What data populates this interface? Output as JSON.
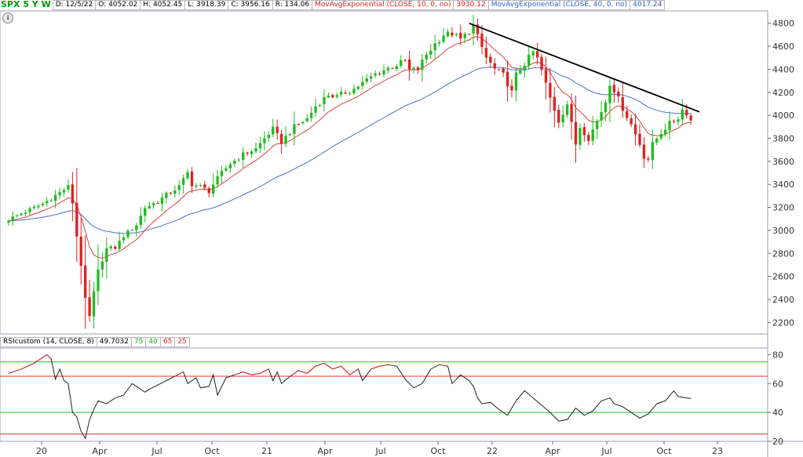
{
  "header": {
    "symbol": "SPX 5 Y W",
    "date": "D: 12/5/22",
    "open": "O: 4052.02",
    "high": "H: 4052.45",
    "low": "L: 3918.39",
    "close": "C: 3956.16",
    "range": "R: 134.06",
    "ema10_label": "MovAvgExponential (CLOSE, 10, 0, no)",
    "ema10_value": "3930.12",
    "ema40_label": "MovAvgExponential (CLOSE, 40, 0, no)",
    "ema40_value": "4017.24"
  },
  "rsi_header": {
    "label": "RSIcustom (14, CLOSE, 8)",
    "value": "49.7032",
    "level1": "75",
    "level2": "40",
    "level3": "65",
    "level4": "25"
  },
  "icons": {
    "tool": "info-circle-icon"
  },
  "colors": {
    "up": "#22bb22",
    "down": "#dd2222",
    "ema10": "#e04040",
    "ema40": "#4a70c8",
    "trendline": "#000000",
    "rsi": "#202020",
    "rsi_green": "#30c030",
    "rsi_red": "#e03030",
    "symbol": "#009900"
  },
  "chart_data": [
    {
      "type": "candlestick",
      "ylim": [
        2100,
        4900
      ],
      "yticks": [
        2200,
        2400,
        2600,
        2800,
        3000,
        3200,
        3400,
        3600,
        3800,
        4000,
        4200,
        4400,
        4600,
        4800
      ],
      "x_ticks": [
        "20",
        "Apr",
        "Jul",
        "Oct",
        "21",
        "Apr",
        "Jul",
        "Oct",
        "22",
        "Apr",
        "Jul",
        "Oct",
        "23"
      ],
      "grid": false,
      "series": [
        {
          "name": "MovAvgExponential (CLOSE, 10, 0, no)"
        },
        {
          "name": "MovAvgExponential (CLOSE, 40, 0, no)"
        }
      ],
      "close_path": [
        [
          0,
          3095
        ],
        [
          8,
          3230
        ],
        [
          12,
          3330
        ],
        [
          14,
          3380
        ],
        [
          15,
          3240
        ],
        [
          16,
          2950
        ],
        [
          17,
          2700
        ],
        [
          18,
          2400
        ],
        [
          19,
          2250
        ],
        [
          20,
          2460
        ],
        [
          21,
          2650
        ],
        [
          23,
          2840
        ],
        [
          25,
          2850
        ],
        [
          27,
          2950
        ],
        [
          30,
          3050
        ],
        [
          32,
          3200
        ],
        [
          35,
          3250
        ],
        [
          37,
          3310
        ],
        [
          40,
          3380
        ],
        [
          42,
          3500
        ],
        [
          43,
          3400
        ],
        [
          45,
          3380
        ],
        [
          47,
          3340
        ],
        [
          48,
          3400
        ],
        [
          50,
          3500
        ],
        [
          52,
          3580
        ],
        [
          55,
          3660
        ],
        [
          58,
          3710
        ],
        [
          60,
          3800
        ],
        [
          62,
          3880
        ],
        [
          64,
          3770
        ],
        [
          67,
          3900
        ],
        [
          70,
          3970
        ],
        [
          72,
          4080
        ],
        [
          75,
          4180
        ],
        [
          77,
          4160
        ],
        [
          79,
          4200
        ],
        [
          81,
          4230
        ],
        [
          83,
          4280
        ],
        [
          86,
          4360
        ],
        [
          89,
          4410
        ],
        [
          91,
          4440
        ],
        [
          93,
          4470
        ],
        [
          94,
          4390
        ],
        [
          96,
          4400
        ],
        [
          98,
          4530
        ],
        [
          100,
          4620
        ],
        [
          102,
          4700
        ],
        [
          104,
          4710
        ],
        [
          106,
          4660
        ],
        [
          108,
          4730
        ],
        [
          109,
          4780
        ],
        [
          110,
          4680
        ],
        [
          112,
          4500
        ],
        [
          114,
          4400
        ],
        [
          116,
          4350
        ],
        [
          118,
          4200
        ],
        [
          119,
          4350
        ],
        [
          121,
          4450
        ],
        [
          123,
          4550
        ],
        [
          124,
          4490
        ],
        [
          125,
          4390
        ],
        [
          127,
          4150
        ],
        [
          129,
          3950
        ],
        [
          131,
          4100
        ],
        [
          133,
          3750
        ],
        [
          134,
          3900
        ],
        [
          136,
          3800
        ],
        [
          138,
          3950
        ],
        [
          140,
          4120
        ],
        [
          141,
          4280
        ],
        [
          142,
          4220
        ],
        [
          144,
          4060
        ],
        [
          146,
          3920
        ],
        [
          148,
          3750
        ],
        [
          149,
          3640
        ],
        [
          150,
          3620
        ],
        [
          151,
          3750
        ],
        [
          153,
          3850
        ],
        [
          155,
          3930
        ],
        [
          157,
          3980
        ],
        [
          158,
          4050
        ],
        [
          159,
          4020
        ],
        [
          160,
          3956
        ]
      ],
      "trendline": {
        "from": [
          108,
          4800
        ],
        "to": [
          162,
          4030
        ]
      }
    },
    {
      "type": "line",
      "title": "RSIcustom (14, CLOSE, 8)",
      "ylim": [
        20,
        84
      ],
      "yticks": [
        20,
        40,
        60,
        80
      ],
      "levels": [
        75,
        40,
        65,
        25
      ],
      "values": [
        [
          0,
          67
        ],
        [
          3,
          70
        ],
        [
          6,
          74
        ],
        [
          8,
          78
        ],
        [
          9,
          80
        ],
        [
          10,
          77
        ],
        [
          11,
          63
        ],
        [
          12,
          70
        ],
        [
          13,
          62
        ],
        [
          14,
          60
        ],
        [
          15,
          40
        ],
        [
          16,
          37
        ],
        [
          17,
          27
        ],
        [
          18,
          22
        ],
        [
          19,
          35
        ],
        [
          20,
          42
        ],
        [
          21,
          48
        ],
        [
          23,
          46
        ],
        [
          25,
          50
        ],
        [
          27,
          52
        ],
        [
          28,
          56
        ],
        [
          29,
          60
        ],
        [
          30,
          58
        ],
        [
          32,
          54
        ],
        [
          33,
          56
        ],
        [
          35,
          59
        ],
        [
          37,
          62
        ],
        [
          39,
          65
        ],
        [
          41,
          68
        ],
        [
          42,
          60
        ],
        [
          44,
          64
        ],
        [
          45,
          57
        ],
        [
          47,
          58
        ],
        [
          48,
          66
        ],
        [
          49,
          52
        ],
        [
          50,
          58
        ],
        [
          51,
          64
        ],
        [
          53,
          66
        ],
        [
          55,
          68
        ],
        [
          57,
          66
        ],
        [
          59,
          67
        ],
        [
          61,
          70
        ],
        [
          62,
          62
        ],
        [
          63,
          68
        ],
        [
          64,
          60
        ],
        [
          66,
          65
        ],
        [
          68,
          69
        ],
        [
          70,
          67
        ],
        [
          72,
          72
        ],
        [
          74,
          74
        ],
        [
          76,
          70
        ],
        [
          78,
          72
        ],
        [
          80,
          66
        ],
        [
          82,
          70
        ],
        [
          83,
          62
        ],
        [
          85,
          70
        ],
        [
          87,
          72
        ],
        [
          89,
          73
        ],
        [
          91,
          72
        ],
        [
          93,
          63
        ],
        [
          95,
          57
        ],
        [
          97,
          60
        ],
        [
          99,
          70
        ],
        [
          101,
          73
        ],
        [
          103,
          72
        ],
        [
          104,
          60
        ],
        [
          106,
          66
        ],
        [
          108,
          62
        ],
        [
          109,
          58
        ],
        [
          110,
          50
        ],
        [
          111,
          46
        ],
        [
          113,
          47
        ],
        [
          115,
          42
        ],
        [
          117,
          38
        ],
        [
          119,
          48
        ],
        [
          121,
          55
        ],
        [
          123,
          50
        ],
        [
          125,
          45
        ],
        [
          127,
          40
        ],
        [
          129,
          34
        ],
        [
          131,
          35
        ],
        [
          133,
          43
        ],
        [
          135,
          38
        ],
        [
          137,
          41
        ],
        [
          139,
          48
        ],
        [
          141,
          50
        ],
        [
          142,
          46
        ],
        [
          144,
          44
        ],
        [
          146,
          40
        ],
        [
          148,
          36
        ],
        [
          150,
          39
        ],
        [
          152,
          46
        ],
        [
          154,
          48
        ],
        [
          156,
          55
        ],
        [
          157,
          51
        ],
        [
          159,
          50
        ],
        [
          160,
          49.7
        ]
      ]
    }
  ]
}
